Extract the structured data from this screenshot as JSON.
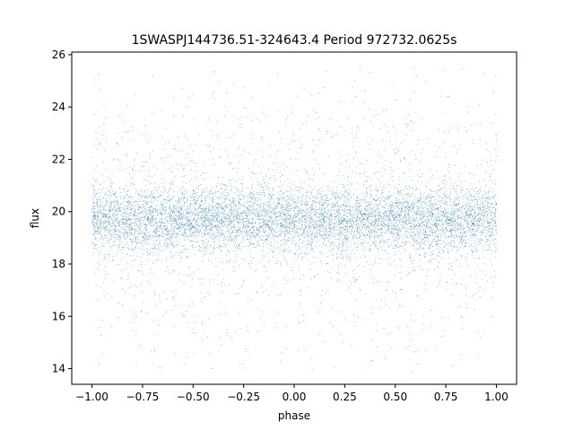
{
  "chart_data": {
    "type": "scatter",
    "title": "1SWASPJ144736.51-324643.4 Period 972732.0625s",
    "xlabel": "phase",
    "ylabel": "flux",
    "xlim": [
      -1.1,
      1.1
    ],
    "ylim": [
      13.4,
      26.1
    ],
    "xticks": [
      -1.0,
      -0.75,
      -0.5,
      -0.25,
      0.0,
      0.25,
      0.5,
      0.75,
      1.0
    ],
    "xtick_labels": [
      "−1.00",
      "−0.75",
      "−0.50",
      "−0.25",
      "0.00",
      "0.25",
      "0.50",
      "0.75",
      "1.00"
    ],
    "yticks": [
      14,
      16,
      18,
      20,
      22,
      24,
      26
    ],
    "ytick_labels": [
      "14",
      "16",
      "18",
      "20",
      "22",
      "24",
      "26"
    ],
    "grid": false,
    "marker_color": "#1f77b4",
    "series": [
      {
        "points_description_values": {
          "x_range": [
            -1.0,
            1.0
          ],
          "y_center": 19.7,
          "y_core_halfwidth": 0.6,
          "y_min": 13.9,
          "y_max": 25.5
        }
      }
    ]
  }
}
